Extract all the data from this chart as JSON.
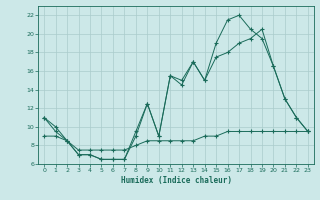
{
  "xlabel": "Humidex (Indice chaleur)",
  "bg_color": "#cce8e8",
  "line_color": "#1a6b5a",
  "grid_color": "#aacccc",
  "xlim": [
    -0.5,
    23.5
  ],
  "ylim": [
    6,
    23
  ],
  "xticks": [
    0,
    1,
    2,
    3,
    4,
    5,
    6,
    7,
    8,
    9,
    10,
    11,
    12,
    13,
    14,
    15,
    16,
    17,
    18,
    19,
    20,
    21,
    22,
    23
  ],
  "yticks": [
    6,
    8,
    10,
    12,
    14,
    16,
    18,
    20,
    22
  ],
  "line1_x": [
    0,
    1,
    2,
    3,
    4,
    5,
    6,
    7,
    8,
    9,
    10,
    11,
    12,
    13,
    14,
    15,
    16,
    17,
    18,
    19,
    20,
    21,
    22,
    23
  ],
  "line1_y": [
    11.0,
    10.0,
    8.5,
    7.0,
    7.0,
    6.5,
    6.5,
    6.5,
    9.0,
    12.5,
    9.0,
    15.5,
    14.5,
    17.0,
    15.0,
    17.5,
    18.0,
    19.0,
    19.5,
    20.5,
    16.5,
    13.0,
    11.0,
    9.5
  ],
  "line2_x": [
    0,
    1,
    2,
    3,
    4,
    5,
    6,
    7,
    8,
    9,
    10,
    11,
    12,
    13,
    14,
    15,
    16,
    17,
    18,
    19,
    20,
    21,
    22,
    23
  ],
  "line2_y": [
    11.0,
    9.5,
    8.5,
    7.0,
    7.0,
    6.5,
    6.5,
    6.5,
    9.5,
    12.5,
    9.0,
    15.5,
    15.0,
    17.0,
    15.0,
    19.0,
    21.5,
    22.0,
    20.5,
    19.5,
    16.5,
    13.0,
    11.0,
    9.5
  ],
  "line3_x": [
    0,
    1,
    2,
    3,
    4,
    5,
    6,
    7,
    8,
    9,
    10,
    11,
    12,
    13,
    14,
    15,
    16,
    17,
    18,
    19,
    20,
    21,
    22,
    23
  ],
  "line3_y": [
    9.0,
    9.0,
    8.5,
    7.5,
    7.5,
    7.5,
    7.5,
    7.5,
    8.0,
    8.5,
    8.5,
    8.5,
    8.5,
    8.5,
    9.0,
    9.0,
    9.5,
    9.5,
    9.5,
    9.5,
    9.5,
    9.5,
    9.5,
    9.5
  ]
}
